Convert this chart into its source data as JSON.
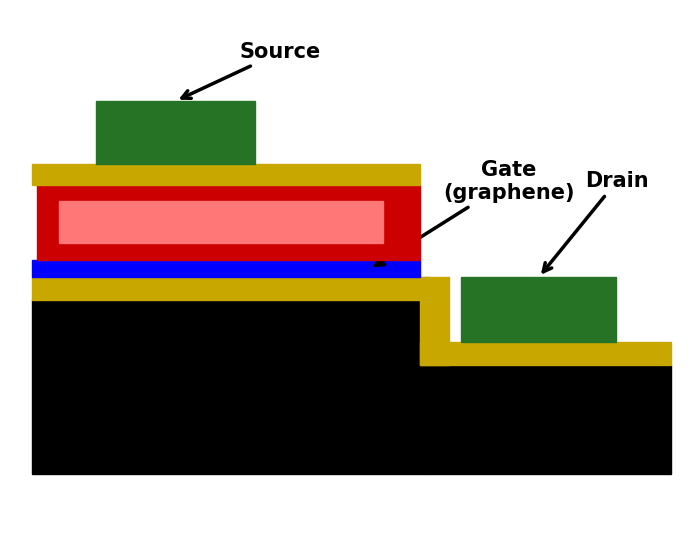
{
  "bg_color": "#ffffff",
  "colors": {
    "black": "#000000",
    "yellow": "#c8a800",
    "blue": "#0000ff",
    "red_dark": "#cc0000",
    "red_light": "#ff7777",
    "green": "#267326",
    "white": "#ffffff"
  },
  "labels": {
    "source": "Source",
    "gate": "Gate\n(graphene)",
    "drain": "Drain"
  },
  "figsize": [
    7.0,
    5.41
  ],
  "dpi": 100
}
